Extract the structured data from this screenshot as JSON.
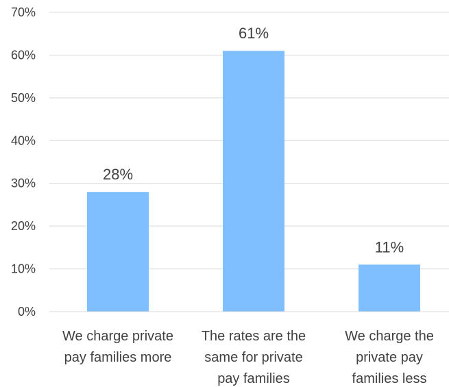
{
  "chart_data": {
    "type": "bar",
    "categories": [
      [
        "We charge private",
        "pay families more"
      ],
      [
        "The rates are the",
        "same for private",
        "pay families"
      ],
      [
        "We charge the",
        "private pay",
        "families less"
      ]
    ],
    "values": [
      28,
      61,
      11
    ],
    "value_labels": [
      "28%",
      "61%",
      "11%"
    ],
    "y_ticks": [
      0,
      10,
      20,
      30,
      40,
      50,
      60,
      70
    ],
    "y_tick_labels": [
      "0%",
      "10%",
      "20%",
      "30%",
      "40%",
      "50%",
      "60%",
      "70%"
    ],
    "ylim": [
      0,
      70
    ],
    "grid": true,
    "legend": "none",
    "title": "",
    "xlabel": "",
    "ylabel": "",
    "colors": {
      "bar": "#7fbfff",
      "text": "#404040",
      "grid": "#d9d9d9"
    }
  }
}
